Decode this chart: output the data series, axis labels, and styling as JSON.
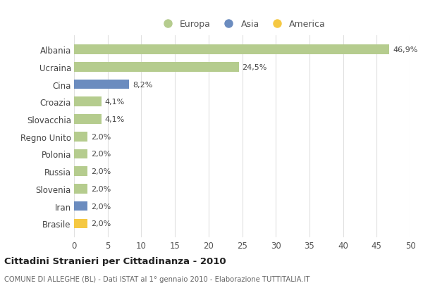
{
  "categories": [
    "Brasile",
    "Iran",
    "Slovenia",
    "Russia",
    "Polonia",
    "Regno Unito",
    "Slovacchia",
    "Croazia",
    "Cina",
    "Ucraina",
    "Albania"
  ],
  "values": [
    2.0,
    2.0,
    2.0,
    2.0,
    2.0,
    2.0,
    4.1,
    4.1,
    8.2,
    24.5,
    46.9
  ],
  "colors": [
    "#f5c842",
    "#6b8cbf",
    "#b5cc8e",
    "#b5cc8e",
    "#b5cc8e",
    "#b5cc8e",
    "#b5cc8e",
    "#b5cc8e",
    "#6b8cbf",
    "#b5cc8e",
    "#b5cc8e"
  ],
  "labels": [
    "2,0%",
    "2,0%",
    "2,0%",
    "2,0%",
    "2,0%",
    "2,0%",
    "4,1%",
    "4,1%",
    "8,2%",
    "24,5%",
    "46,9%"
  ],
  "legend_labels": [
    "Europa",
    "Asia",
    "America"
  ],
  "legend_colors": [
    "#b5cc8e",
    "#6b8cbf",
    "#f5c842"
  ],
  "title": "Cittadini Stranieri per Cittadinanza - 2010",
  "subtitle": "COMUNE DI ALLEGHE (BL) - Dati ISTAT al 1° gennaio 2010 - Elaborazione TUTTITALIA.IT",
  "xlim": [
    0,
    50
  ],
  "xticks": [
    0,
    5,
    10,
    15,
    20,
    25,
    30,
    35,
    40,
    45,
    50
  ],
  "background_color": "#ffffff",
  "grid_color": "#e0e0e0",
  "bar_height": 0.55,
  "label_fontsize": 8,
  "tick_fontsize": 8.5,
  "legend_fontsize": 9
}
